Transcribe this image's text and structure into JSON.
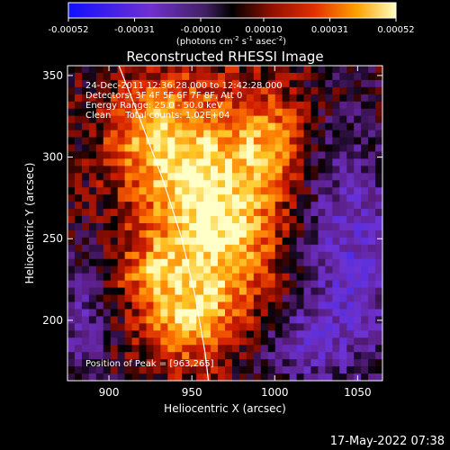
{
  "colorbar": {
    "ticks": [
      "-0.00052",
      "-0.00031",
      "-0.00010",
      "0.00010",
      "0.00031",
      "0.00052"
    ],
    "tick_values": [
      -0.00052,
      -0.00031,
      -0.0001,
      0.0001,
      0.00031,
      0.00052
    ],
    "range": [
      -0.00052,
      0.00052
    ],
    "units_main": "(photons cm",
    "units_sup1": "-2",
    "units_mid": " s",
    "units_sup2": "-1",
    "units_end": " asec",
    "units_sup3": "-2",
    "units_close": ")"
  },
  "chart_data": {
    "type": "heatmap",
    "title": "Reconstructed RHESSI Image",
    "xlabel": "Heliocentric X (arcsec)",
    "ylabel": "Heliocentric Y (arcsec)",
    "xlim": [
      875,
      1065
    ],
    "ylim": [
      163,
      356
    ],
    "xticks": [
      900,
      950,
      1000,
      1050
    ],
    "yticks": [
      200,
      250,
      300,
      350
    ],
    "annotations": [
      "24-Dec-2011 12:36:28.000 to 12:42:28.000",
      "Detectors: 3F 4F 5F 6F 7F 8F, Att 0",
      "Energy Range: 25.0 - 50.0 keV",
      "Clean     Total counts: 1.02E+04"
    ],
    "peak_label": "Position of Peak = [963,265]",
    "peak": [
      963,
      265
    ],
    "limb_curve": [
      [
        906,
        356
      ],
      [
        920,
        320
      ],
      [
        933,
        285
      ],
      [
        944,
        250
      ],
      [
        952,
        215
      ],
      [
        958,
        180
      ],
      [
        960,
        163
      ]
    ],
    "colors": {
      "neg_low": "#2020ff",
      "neg_high": "#a030a0",
      "zero": "#000000",
      "pos_mid": "#d02000",
      "pos_high": "#ffa000",
      "max": "#ffffd0"
    }
  },
  "footer": {
    "date": "17-May-2022 07:38"
  }
}
